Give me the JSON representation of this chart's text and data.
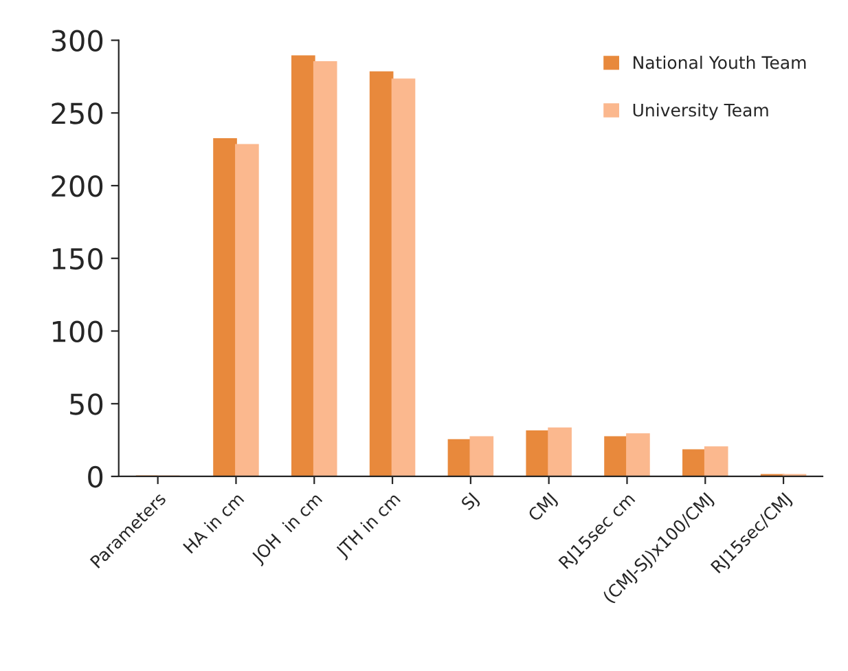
{
  "chart_data": {
    "type": "bar",
    "categories": [
      "Parameters",
      "HA in cm",
      "JOH  in cm",
      "JTH in cm",
      "SJ",
      "CMJ",
      "RJ15sec cm",
      "(CMJ-SJ)x100/CMJ",
      "RJ15sec/CMJ"
    ],
    "series": [
      {
        "name": "National Youth Team",
        "color": "#e8893c",
        "values": [
          0,
          232,
          289,
          278,
          25,
          31,
          27,
          18,
          1
        ]
      },
      {
        "name": "University Team",
        "color": "#fbb88e",
        "values": [
          0,
          228,
          285,
          273,
          27,
          33,
          29,
          20,
          1
        ]
      }
    ],
    "ylim": [
      0,
      300
    ],
    "yticks": [
      0,
      50,
      100,
      150,
      200,
      250,
      300
    ],
    "grid": false,
    "legend": "top right"
  }
}
